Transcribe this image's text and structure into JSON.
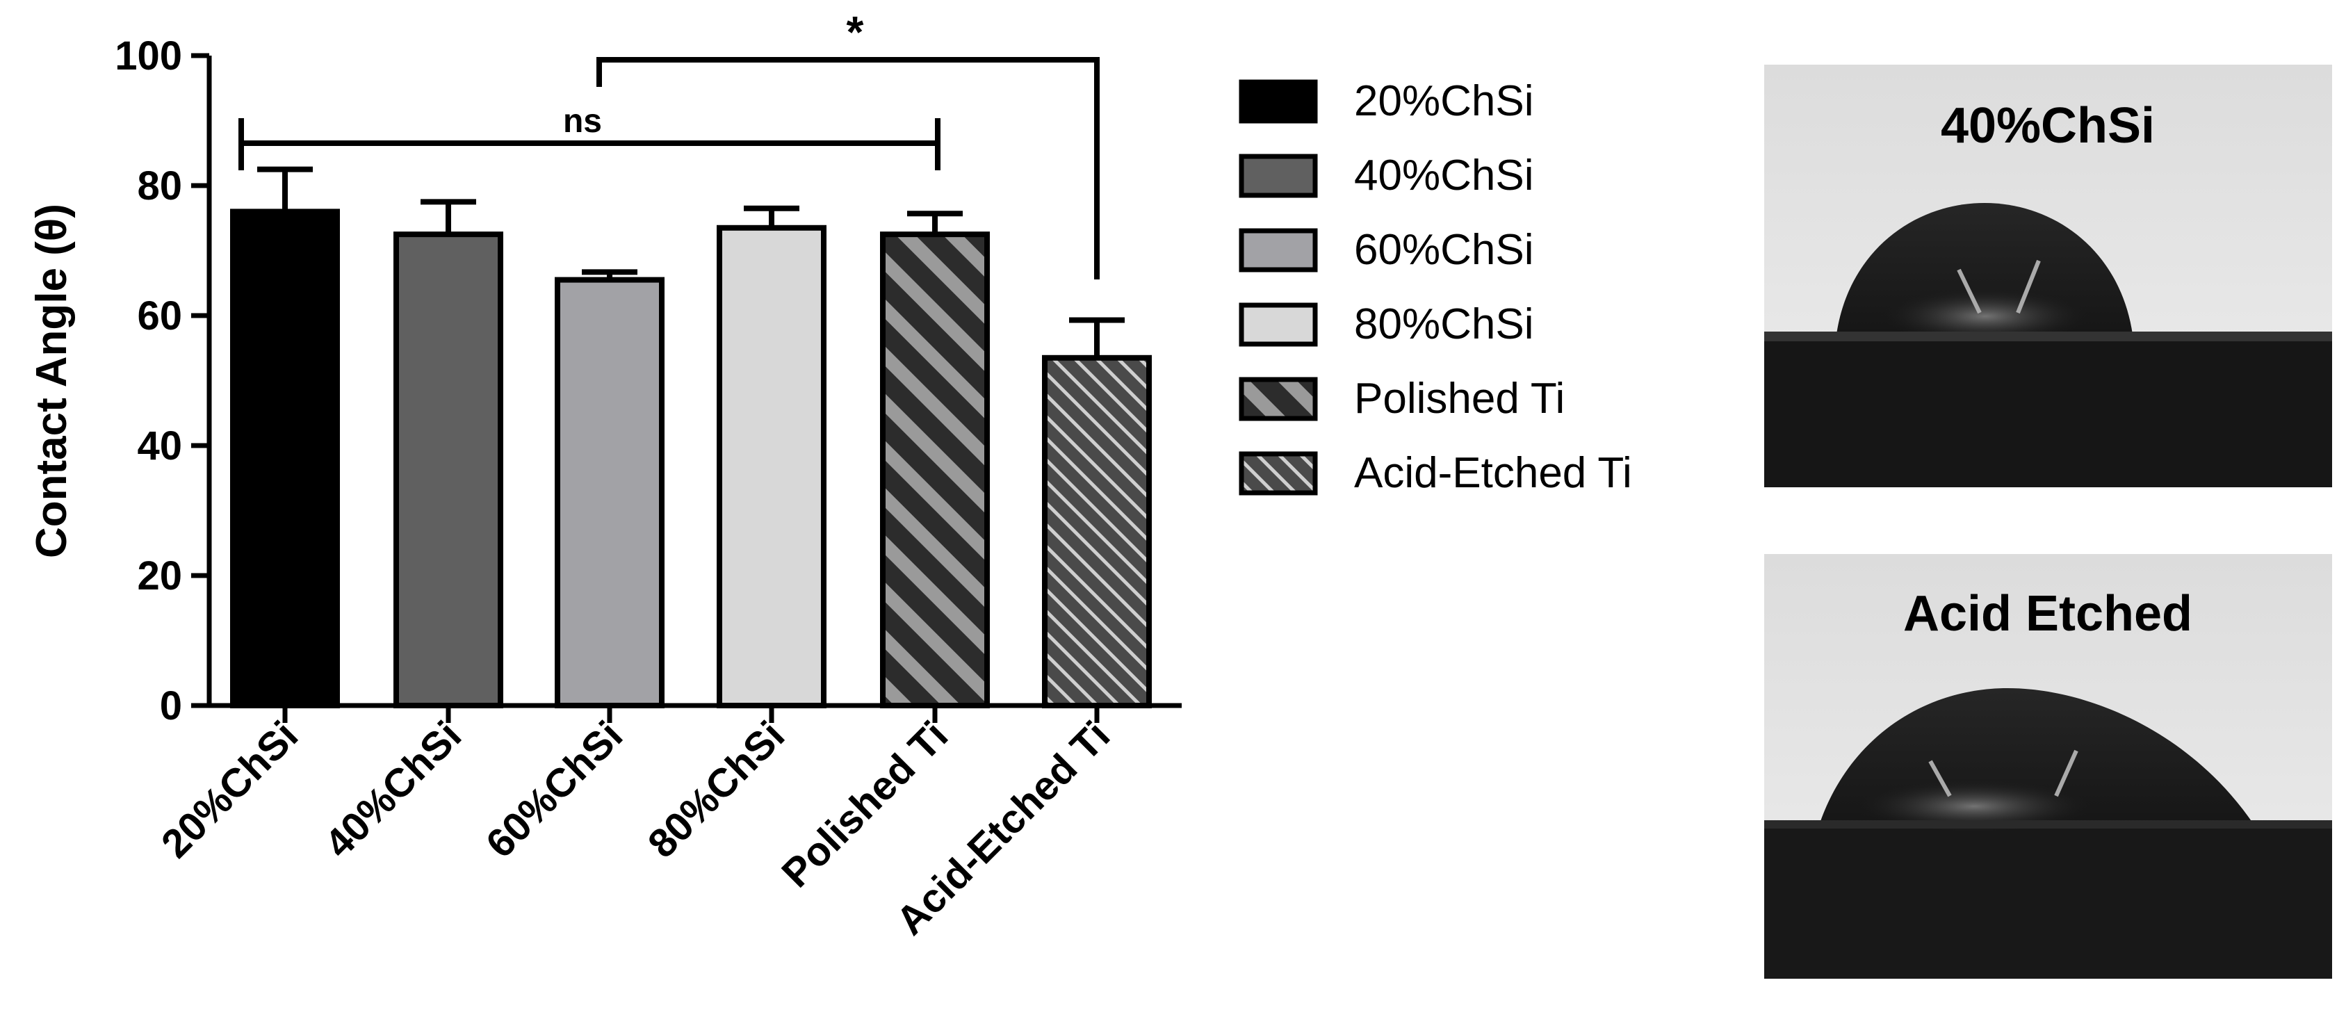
{
  "chart_data": {
    "type": "bar",
    "categories": [
      "20%ChSi",
      "40%ChSi",
      "60%ChSi",
      "80%ChSi",
      "Polished Ti",
      "Acid-Etched Ti"
    ],
    "series": [
      {
        "values": [
          76,
          72.5,
          65.5,
          73.5,
          72.5,
          53.5
        ],
        "errors": [
          6.5,
          5,
          1.2,
          3,
          3.2,
          5.8
        ]
      }
    ],
    "ylabel": "Contact Angle (θ)",
    "ylim": [
      0,
      100
    ],
    "yticks": [
      0,
      20,
      40,
      60,
      80,
      100
    ],
    "legend": {
      "placement": "right",
      "entries": [
        "20%ChSi",
        "40%ChSi",
        "60%ChSi",
        "80%ChSi",
        "Polished Ti",
        "Acid-Etched Ti"
      ]
    },
    "bar_styles": [
      {
        "fill": "#000000",
        "pattern": "solid"
      },
      {
        "fill": "#606060",
        "pattern": "solid"
      },
      {
        "fill": "#a2a2a6",
        "pattern": "solid"
      },
      {
        "fill": "#d8d8d8",
        "pattern": "solid"
      },
      {
        "fill": "#3a3a3a",
        "pattern": "wide-stripes"
      },
      {
        "fill": "#555555",
        "pattern": "fine-stripes"
      }
    ],
    "significance": [
      {
        "label": "ns",
        "from": "20%ChSi",
        "to": "Polished Ti"
      },
      {
        "label": "*",
        "from": "60%ChSi",
        "to": "Acid-Etched Ti"
      }
    ],
    "grid": false
  },
  "photos": [
    {
      "caption": "40%ChSi"
    },
    {
      "caption": "Acid Etched"
    }
  ]
}
